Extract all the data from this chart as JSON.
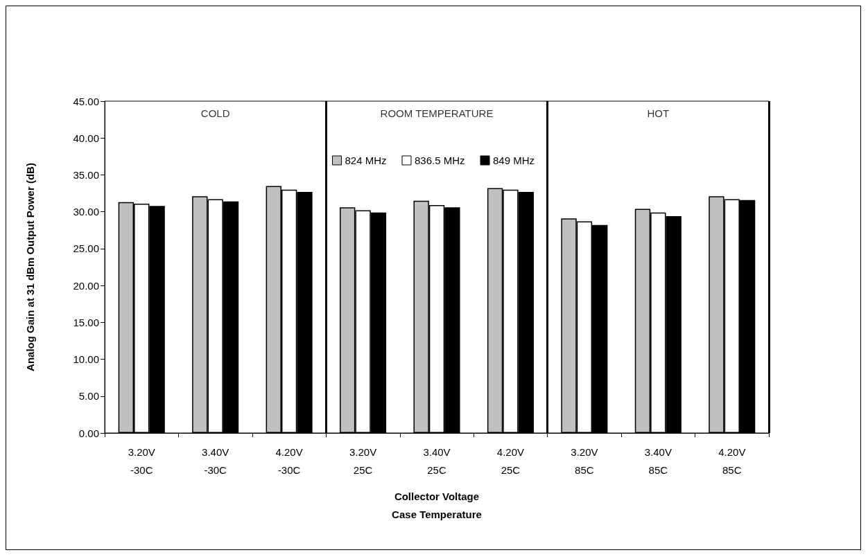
{
  "chart_data": {
    "type": "bar",
    "xlabel": "Collector Voltage\nCase Temperature",
    "ylabel": "Analog Gain at 31 dBm Output Power (dB)",
    "categories": [
      "3.20V\n-30C",
      "3.40V\n-30C",
      "4.20V\n-30C",
      "3.20V\n25C",
      "3.40V\n25C",
      "4.20V\n25C",
      "3.20V\n85C",
      "3.40V\n85C",
      "4.20V\n85C"
    ],
    "series": [
      {
        "name": "824 MHz",
        "color": "#c0c0c0",
        "values": [
          31.3,
          32.1,
          33.5,
          30.6,
          31.5,
          33.2,
          29.1,
          30.4,
          32.1
        ]
      },
      {
        "name": "836.5 MHz",
        "color": "#ffffff",
        "values": [
          31.1,
          31.7,
          33.0,
          30.2,
          30.9,
          33.0,
          28.7,
          29.9,
          31.7
        ]
      },
      {
        "name": "849 MHz",
        "color": "#000000",
        "values": [
          30.8,
          31.4,
          32.7,
          29.9,
          30.6,
          32.7,
          28.2,
          29.4,
          31.6
        ]
      }
    ],
    "ylim": [
      0,
      45
    ],
    "yticks": [
      {
        "value": 0,
        "label": "0.00"
      },
      {
        "value": 5,
        "label": "5.00"
      },
      {
        "value": 10,
        "label": "10.00"
      },
      {
        "value": 15,
        "label": "15.00"
      },
      {
        "value": 20,
        "label": "20.00"
      },
      {
        "value": 25,
        "label": "25.00"
      },
      {
        "value": 30,
        "label": "30.00"
      },
      {
        "value": 35,
        "label": "35.00"
      },
      {
        "value": 40,
        "label": "40.00"
      },
      {
        "value": 45,
        "label": "45.00"
      }
    ],
    "annotations": [
      "COLD",
      "ROOM TEMPERATURE",
      "HOT"
    ],
    "grid": false,
    "legend": "top"
  }
}
